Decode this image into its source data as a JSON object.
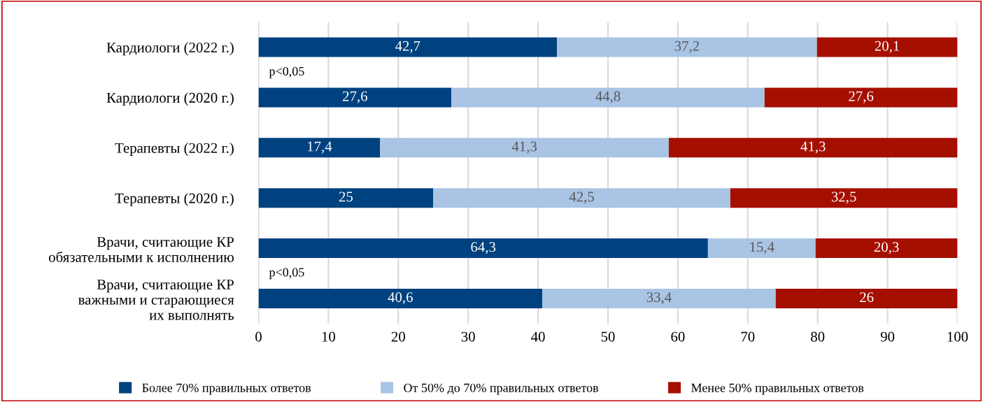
{
  "chart_data": {
    "type": "bar",
    "orientation": "horizontal",
    "stacked": true,
    "categories": [
      "Кардиологи (2022 г.)",
      "Кардиологи (2020 г.)",
      "Терапевты (2022 г.)",
      "Терапевты (2020 г.)",
      "Врачи, считающие КР\nобязательными к исполнению",
      "Врачи, считающие КР\nважными и старающиеся\nих выполнять"
    ],
    "series": [
      {
        "name": "Более 70% правильных ответов",
        "color": "#00427f",
        "values": [
          42.7,
          27.6,
          17.4,
          25,
          64.3,
          40.6
        ],
        "value_labels": [
          "42,7",
          "27,6",
          "17,4",
          "25",
          "64,3",
          "40,6"
        ]
      },
      {
        "name": "От 50% до 70% правильных ответов",
        "color": "#a9c4e4",
        "values": [
          37.2,
          44.8,
          41.3,
          42.5,
          15.4,
          33.4
        ],
        "value_labels": [
          "37,2",
          "44,8",
          "41,3",
          "42,5",
          "15,4",
          "33,4"
        ]
      },
      {
        "name": "Менее 50% правильных ответов",
        "color": "#a50f00",
        "values": [
          20.1,
          27.6,
          41.3,
          32.5,
          20.3,
          26
        ],
        "value_labels": [
          "20,1",
          "27,6",
          "41,3",
          "32,5",
          "20,3",
          "26"
        ]
      }
    ],
    "xlim": [
      0,
      100
    ],
    "xticks": [
      0,
      10,
      20,
      30,
      40,
      50,
      60,
      70,
      80,
      90,
      100
    ],
    "grid": "x",
    "legend": "bottom",
    "annotations": [
      "p<0,05",
      "p<0,05"
    ]
  }
}
